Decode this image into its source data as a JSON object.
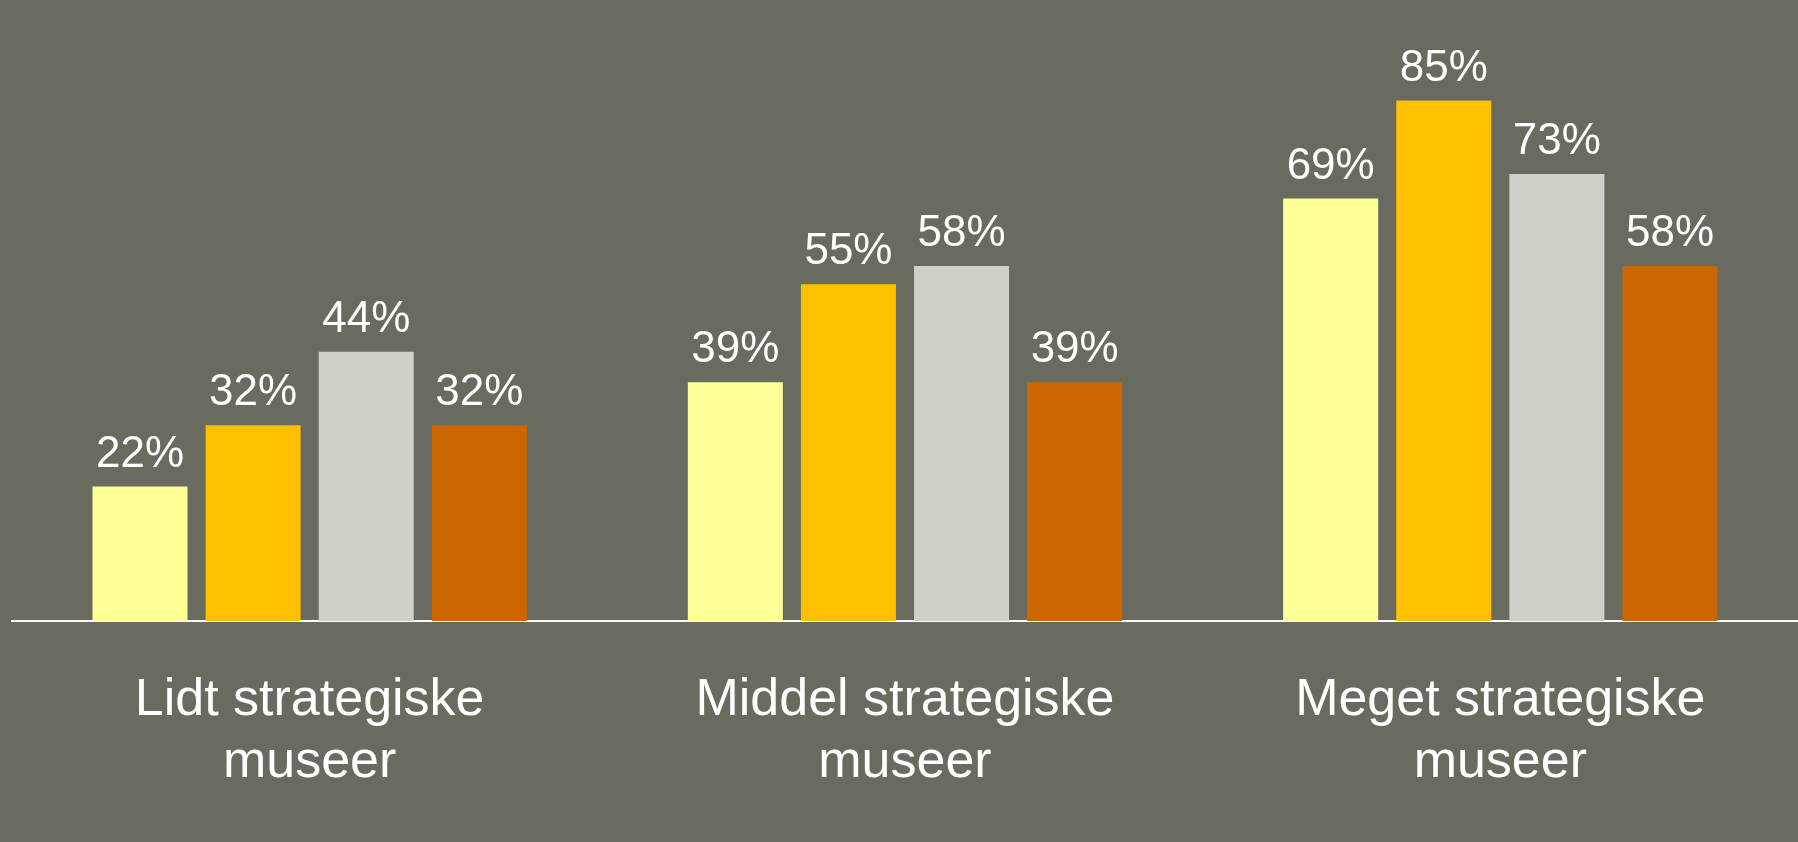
{
  "chart_data": {
    "type": "bar",
    "categories": [
      "Lidt strategiske museer",
      "Middel strategiske museer",
      "Meget strategiske museer"
    ],
    "series": [
      {
        "color": "#ffff99",
        "values": [
          22,
          39,
          69
        ],
        "value_labels": [
          "22%",
          "39%",
          "69%"
        ]
      },
      {
        "color": "#ffc000",
        "values": [
          32,
          55,
          85
        ],
        "value_labels": [
          "32%",
          "55%",
          "85%"
        ]
      },
      {
        "color": "#d0d0c8",
        "values": [
          44,
          58,
          73
        ],
        "value_labels": [
          "44%",
          "58%",
          "73%"
        ]
      },
      {
        "color": "#cc6600",
        "values": [
          32,
          39,
          58
        ],
        "value_labels": [
          "32%",
          "39%",
          "58%"
        ]
      }
    ],
    "grid": false,
    "legend": false
  }
}
